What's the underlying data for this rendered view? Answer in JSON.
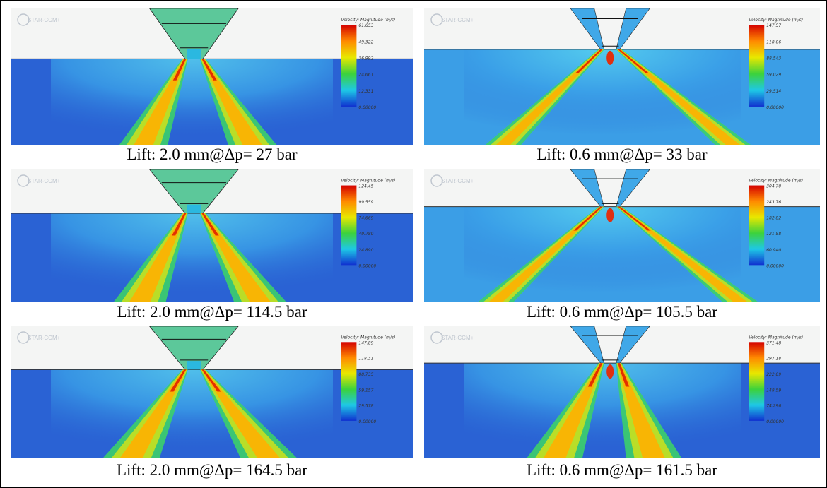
{
  "panels": [
    {
      "logo": "STAR-CCM+",
      "legend_title": "Velocity: Magnitude (m/s)",
      "legend_labels": [
        "61.653",
        "49.322",
        "36.992",
        "24.661",
        "12.331",
        "0.00000"
      ],
      "caption": "Lift: 2.0 mm@Δp= 27 bar"
    },
    {
      "logo": "STAR-CCM+",
      "legend_title": "Velocity: Magnitude (m/s)",
      "legend_labels": [
        "147.57",
        "118.06",
        "88.543",
        "59.029",
        "29.514",
        "0.00000"
      ],
      "caption": "Lift: 0.6 mm@Δp= 33 bar"
    },
    {
      "logo": "STAR-CCM+",
      "legend_title": "Velocity: Magnitude (m/s)",
      "legend_labels": [
        "124.45",
        "99.559",
        "74.669",
        "49.780",
        "24.890",
        "0.00000"
      ],
      "caption": "Lift: 2.0 mm@Δp= 114.5 bar"
    },
    {
      "logo": "STAR-CCM+",
      "legend_title": "Velocity: Magnitude (m/s)",
      "legend_labels": [
        "304.70",
        "243.76",
        "182.82",
        "121.88",
        "60.940",
        "0.00000"
      ],
      "caption": "Lift: 0.6 mm@Δp= 105.5 bar"
    },
    {
      "logo": "STAR-CCM+",
      "legend_title": "Velocity: Magnitude (m/s)",
      "legend_labels": [
        "147.89",
        "118.31",
        "88.735",
        "59.157",
        "29.578",
        "0.00000"
      ],
      "caption": "Lift: 2.0 mm@Δp= 164.5 bar"
    },
    {
      "logo": "STAR-CCM+",
      "legend_title": "Velocity: Magnitude (m/s)",
      "legend_labels": [
        "371.48",
        "297.18",
        "222.89",
        "148.59",
        "74.296",
        "0.00000"
      ],
      "caption": "Lift: 0.6 mm@Δp= 161.5 bar"
    }
  ]
}
